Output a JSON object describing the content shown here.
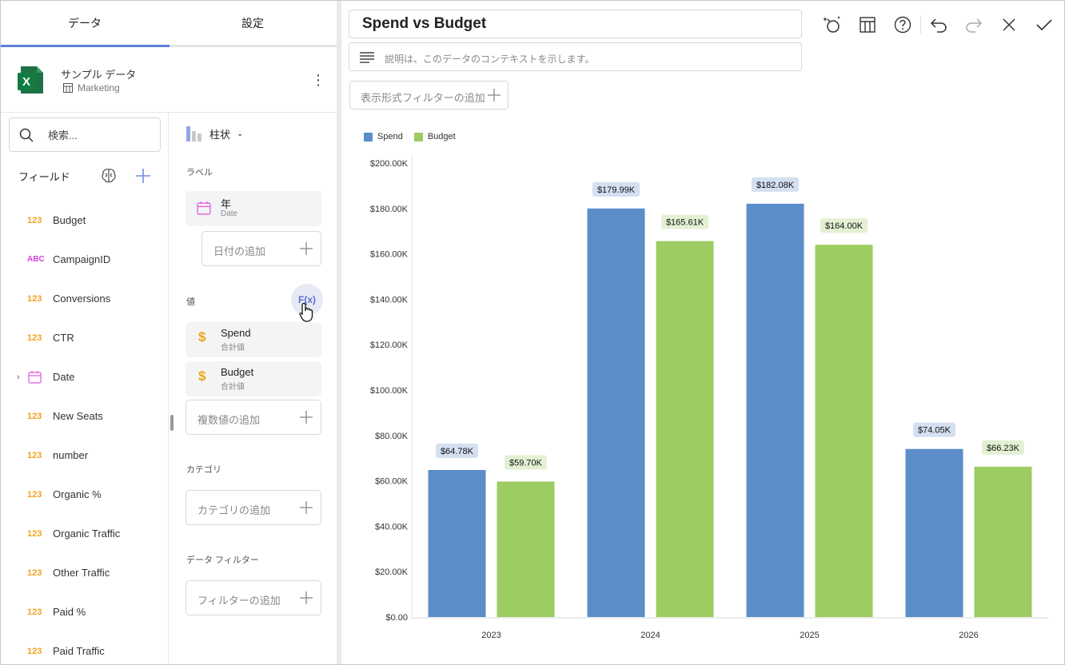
{
  "tabs": [
    {
      "label": "データ"
    },
    {
      "label": "設定"
    }
  ],
  "source": {
    "name": "サンプル データ",
    "sheet": "Marketing",
    "menu_glyph": "⋮"
  },
  "search": {
    "placeholder": "検索..."
  },
  "fields": {
    "header": "フィールド",
    "items": [
      {
        "type": "123",
        "label": "Budget"
      },
      {
        "type": "ABC",
        "label": "CampaignID"
      },
      {
        "type": "123",
        "label": "Conversions"
      },
      {
        "type": "123",
        "label": "CTR"
      },
      {
        "type": "date",
        "label": "Date",
        "expandable": true
      },
      {
        "type": "123",
        "label": "New Seats"
      },
      {
        "type": "123",
        "label": "number"
      },
      {
        "type": "123",
        "label": "Organic %"
      },
      {
        "type": "123",
        "label": "Organic Traffic"
      },
      {
        "type": "123",
        "label": "Other Traffic"
      },
      {
        "type": "123",
        "label": "Paid %"
      },
      {
        "type": "123",
        "label": "Paid Traffic"
      }
    ]
  },
  "config": {
    "chart_type": "柱状",
    "label_section": "ラベル",
    "label_field": {
      "title": "年",
      "sub": "Date"
    },
    "add_date": "日付の追加",
    "values_section": "値",
    "fx_label": "F(x)",
    "value_fields": [
      {
        "title": "Spend",
        "sub": "合計値"
      },
      {
        "title": "Budget",
        "sub": "合計値"
      }
    ],
    "add_values": "複数値の追加",
    "category_section": "カテゴリ",
    "add_category": "カテゴリの追加",
    "filter_section": "データ フィルター",
    "add_filter": "フィルターの追加"
  },
  "editor": {
    "title": "Spend vs Budget",
    "description_placeholder": "説明は、このデータのコンテキストを示します。",
    "view_filter": "表示形式フィルターの追加"
  },
  "colors": {
    "spend": "#5b8dc9",
    "budget": "#9dcc62",
    "spend_label_bg": "#d4e0f0",
    "budget_label_bg": "#e3f0d4",
    "accent": "#5b7fd7"
  },
  "chart_data": {
    "type": "bar",
    "categories": [
      "2023",
      "2024",
      "2025",
      "2026"
    ],
    "series": [
      {
        "name": "Spend",
        "values": [
          64780,
          179990,
          182080,
          74050
        ],
        "labels": [
          "$64.78K",
          "$179.99K",
          "$182.08K",
          "$74.05K"
        ]
      },
      {
        "name": "Budget",
        "values": [
          59700,
          165610,
          164000,
          66230
        ],
        "labels": [
          "$59.70K",
          "$165.61K",
          "$164.00K",
          "$66.23K"
        ]
      }
    ],
    "ylim": [
      0,
      200000
    ],
    "yticks": [
      "$0.00",
      "$20.00K",
      "$40.00K",
      "$60.00K",
      "$80.00K",
      "$100.00K",
      "$120.00K",
      "$140.00K",
      "$160.00K",
      "$180.00K",
      "$200.00K"
    ],
    "legend_position": "top-left"
  }
}
